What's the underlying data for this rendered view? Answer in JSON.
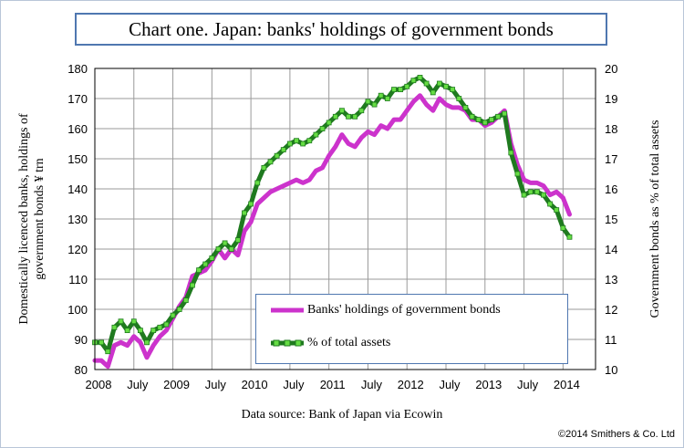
{
  "chart_data": {
    "type": "line",
    "title": "Chart one. Japan: banks' holdings of government bonds",
    "ylabel": "Domestically licenced banks, holdings of government bonds ¥ trn",
    "y2label": "Government bonds as % of total assets",
    "source": "Data source: Bank of Japan via Ecowin",
    "copyright": "©2014 Smithers & Co. Ltd",
    "ylim": [
      80,
      180
    ],
    "y2lim": [
      10,
      20
    ],
    "yticks": [
      "80",
      "90",
      "100",
      "110",
      "120",
      "130",
      "140",
      "150",
      "160",
      "170",
      "180"
    ],
    "y2ticks": [
      "10",
      "11",
      "12",
      "13",
      "14",
      "15",
      "16",
      "17",
      "18",
      "19",
      "20"
    ],
    "xlim": [
      0,
      77
    ],
    "xticks": [
      {
        "label": "2008",
        "month": 0
      },
      {
        "label": "July",
        "month": 6
      },
      {
        "label": "2009",
        "month": 12
      },
      {
        "label": "July",
        "month": 18
      },
      {
        "label": "2010",
        "month": 24
      },
      {
        "label": "July",
        "month": 30
      },
      {
        "label": "2011",
        "month": 36
      },
      {
        "label": "July",
        "month": 42
      },
      {
        "label": "2012",
        "month": 48
      },
      {
        "label": "July",
        "month": 54
      },
      {
        "label": "2013",
        "month": 60
      },
      {
        "label": "July",
        "month": 66
      },
      {
        "label": "2014",
        "month": 72
      }
    ],
    "legend_position": "bottom-right",
    "series": [
      {
        "name": "Banks' holdings of government bonds",
        "axis": "left",
        "color": "#cc33cc",
        "x": [
          0,
          1,
          2,
          3,
          4,
          5,
          6,
          7,
          8,
          9,
          10,
          11,
          12,
          13,
          14,
          15,
          16,
          17,
          18,
          19,
          20,
          21,
          22,
          23,
          24,
          25,
          26,
          27,
          28,
          29,
          30,
          31,
          32,
          33,
          34,
          35,
          36,
          37,
          38,
          39,
          40,
          41,
          42,
          43,
          44,
          45,
          46,
          47,
          48,
          49,
          50,
          51,
          52,
          53,
          54,
          55,
          56,
          57,
          58,
          59,
          60,
          61,
          62,
          63,
          64,
          65,
          66,
          67,
          68,
          69,
          70,
          71,
          72,
          73
        ],
        "values": [
          83,
          83,
          81,
          88,
          89,
          88,
          91,
          89,
          84,
          88,
          91,
          93,
          97,
          101,
          104,
          111,
          112,
          113,
          116,
          120,
          117,
          120,
          118,
          126,
          129,
          135,
          137,
          139,
          140,
          141,
          142,
          143,
          142,
          143,
          146,
          147,
          151,
          154,
          158,
          155,
          154,
          157,
          159,
          158,
          161,
          160,
          163,
          163,
          166,
          169,
          171,
          168,
          166,
          170,
          168,
          167,
          167,
          166,
          163,
          163,
          161,
          162,
          164,
          166,
          155,
          148,
          143,
          142,
          142,
          141,
          138,
          139,
          137,
          131.5
        ]
      },
      {
        "name": "% of total assets",
        "axis": "right",
        "color": "#1f7a1f",
        "marker_color": "#66dd44",
        "x": [
          0,
          1,
          2,
          3,
          4,
          5,
          6,
          7,
          8,
          9,
          10,
          11,
          12,
          13,
          14,
          15,
          16,
          17,
          18,
          19,
          20,
          21,
          22,
          23,
          24,
          25,
          26,
          27,
          28,
          29,
          30,
          31,
          32,
          33,
          34,
          35,
          36,
          37,
          38,
          39,
          40,
          41,
          42,
          43,
          44,
          45,
          46,
          47,
          48,
          49,
          50,
          51,
          52,
          53,
          54,
          55,
          56,
          57,
          58,
          59,
          60,
          61,
          62,
          63,
          64,
          65,
          66,
          67,
          68,
          69,
          70,
          71,
          72,
          73
        ],
        "values": [
          10.9,
          10.9,
          10.6,
          11.4,
          11.6,
          11.3,
          11.6,
          11.3,
          10.9,
          11.3,
          11.4,
          11.5,
          11.8,
          12.0,
          12.3,
          12.8,
          13.3,
          13.5,
          13.7,
          14.0,
          14.2,
          14.0,
          14.3,
          15.2,
          15.5,
          16.2,
          16.7,
          16.9,
          17.1,
          17.3,
          17.5,
          17.6,
          17.5,
          17.6,
          17.8,
          18.0,
          18.2,
          18.4,
          18.6,
          18.4,
          18.4,
          18.6,
          18.9,
          18.8,
          19.1,
          19.0,
          19.3,
          19.3,
          19.4,
          19.6,
          19.7,
          19.5,
          19.2,
          19.5,
          19.4,
          19.3,
          19.0,
          18.7,
          18.4,
          18.3,
          18.2,
          18.3,
          18.4,
          18.5,
          17.2,
          16.5,
          15.8,
          15.9,
          15.9,
          15.8,
          15.5,
          15.3,
          14.7,
          14.4
        ]
      }
    ]
  }
}
